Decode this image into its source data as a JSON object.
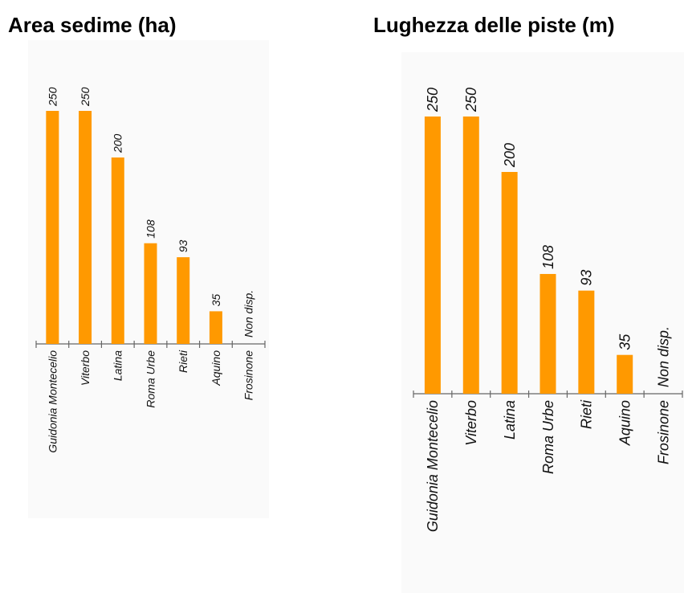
{
  "chart_data": [
    {
      "type": "bar",
      "title": "Area sedime (ha)",
      "color": "#ff9900",
      "categories": [
        "Guidonia Montecelio",
        "Viterbo",
        "Latina",
        "Roma Urbe",
        "Rieti",
        "Aquino",
        "Frosinone"
      ],
      "values": [
        250,
        250,
        200,
        108,
        93,
        35,
        null
      ],
      "value_labels": [
        "250",
        "250",
        "200",
        "108",
        "93",
        "35",
        "Non disp."
      ]
    },
    {
      "type": "bar",
      "title": "Lughezza delle piste (m)",
      "color": "#ff9900",
      "categories": [
        "Guidonia Montecelio",
        "Viterbo",
        "Latina",
        "Roma Urbe",
        "Rieti",
        "Aquino",
        "Frosinone"
      ],
      "values": [
        250,
        250,
        200,
        108,
        93,
        35,
        null
      ],
      "value_labels": [
        "250",
        "250",
        "200",
        "108",
        "93",
        "35",
        "Non disp."
      ]
    }
  ]
}
